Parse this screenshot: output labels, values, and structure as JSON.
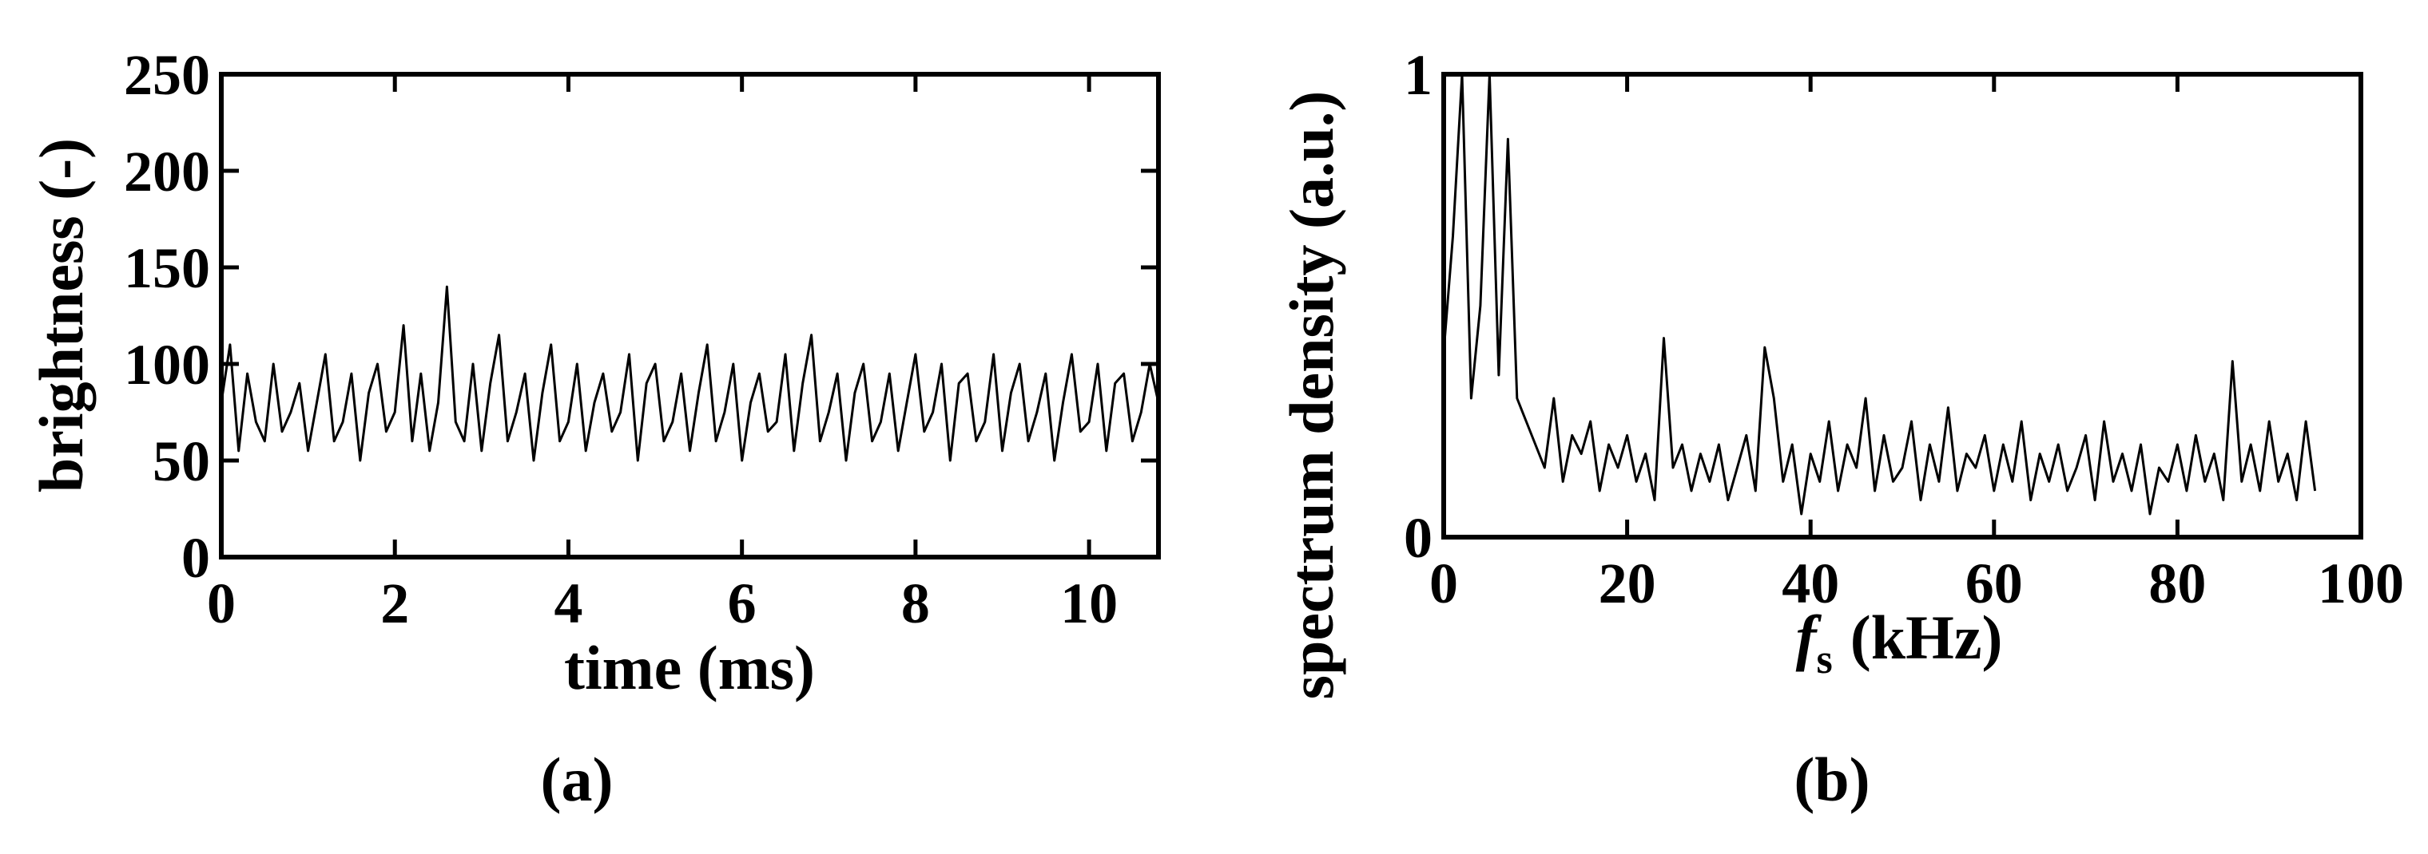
{
  "chart_data": [
    {
      "type": "line",
      "panel_label": "(a)",
      "xlabel": "time (ms)",
      "ylabel": "brightness (-)",
      "color": "#000000",
      "xlim": [
        0,
        10.8
      ],
      "ylim": [
        0,
        250
      ],
      "xticks": [
        0,
        2,
        4,
        6,
        8,
        10
      ],
      "yticks": [
        0,
        50,
        100,
        150,
        200,
        250
      ],
      "x": [
        0,
        0.1,
        0.2,
        0.3,
        0.4,
        0.5,
        0.6,
        0.7,
        0.8,
        0.9,
        1,
        1.1,
        1.2,
        1.3,
        1.4,
        1.5,
        1.6,
        1.7,
        1.8,
        1.9,
        2,
        2.1,
        2.2,
        2.3,
        2.4,
        2.5,
        2.6,
        2.7,
        2.8,
        2.9,
        3,
        3.1,
        3.2,
        3.3,
        3.4,
        3.5,
        3.6,
        3.7,
        3.8,
        3.9,
        4,
        4.1,
        4.2,
        4.3,
        4.4,
        4.5,
        4.6,
        4.7,
        4.8,
        4.9,
        5,
        5.1,
        5.2,
        5.3,
        5.4,
        5.5,
        5.6,
        5.7,
        5.8,
        5.9,
        6,
        6.1,
        6.2,
        6.3,
        6.4,
        6.5,
        6.6,
        6.7,
        6.8,
        6.9,
        7,
        7.1,
        7.2,
        7.3,
        7.4,
        7.5,
        7.6,
        7.7,
        7.8,
        7.9,
        8,
        8.1,
        8.2,
        8.3,
        8.4,
        8.5,
        8.6,
        8.7,
        8.8,
        8.9,
        9,
        9.1,
        9.2,
        9.3,
        9.4,
        9.5,
        9.6,
        9.7,
        9.8,
        9.9,
        10,
        10.1,
        10.2,
        10.3,
        10.4,
        10.5,
        10.6,
        10.7,
        10.8
      ],
      "values": [
        80,
        110,
        55,
        95,
        70,
        60,
        100,
        65,
        75,
        90,
        55,
        80,
        105,
        60,
        70,
        95,
        50,
        85,
        100,
        65,
        75,
        120,
        60,
        95,
        55,
        80,
        140,
        70,
        60,
        100,
        55,
        90,
        115,
        60,
        75,
        95,
        50,
        85,
        110,
        60,
        70,
        100,
        55,
        80,
        95,
        65,
        75,
        105,
        50,
        90,
        100,
        60,
        70,
        95,
        55,
        85,
        110,
        60,
        75,
        100,
        50,
        80,
        95,
        65,
        70,
        105,
        55,
        90,
        115,
        60,
        75,
        95,
        50,
        85,
        100,
        60,
        70,
        95,
        55,
        80,
        105,
        65,
        75,
        100,
        50,
        90,
        95,
        60,
        70,
        105,
        55,
        85,
        100,
        60,
        75,
        95,
        50,
        80,
        105,
        65,
        70,
        100,
        55,
        90,
        95,
        60,
        75,
        100,
        80
      ]
    },
    {
      "type": "line",
      "panel_label": "(b)",
      "xlabel": {
        "symbol": "f",
        "subscript": "s",
        "unit": "(kHz)"
      },
      "ylabel": "spectrum density (a.u.)",
      "color": "#000000",
      "xlim": [
        0,
        100
      ],
      "ylim": [
        0,
        1
      ],
      "xticks": [
        0,
        20,
        40,
        60,
        80,
        100
      ],
      "yticks": [
        0,
        1
      ],
      "x": [
        0,
        1,
        2,
        3,
        4,
        5,
        6,
        7,
        8,
        9,
        10,
        11,
        12,
        13,
        14,
        15,
        16,
        17,
        18,
        19,
        20,
        21,
        22,
        23,
        24,
        25,
        26,
        27,
        28,
        29,
        30,
        31,
        32,
        33,
        34,
        35,
        36,
        37,
        38,
        39,
        40,
        41,
        42,
        43,
        44,
        45,
        46,
        47,
        48,
        49,
        50,
        51,
        52,
        53,
        54,
        55,
        56,
        57,
        58,
        59,
        60,
        61,
        62,
        63,
        64,
        65,
        66,
        67,
        68,
        69,
        70,
        71,
        72,
        73,
        74,
        75,
        76,
        77,
        78,
        79,
        80,
        81,
        82,
        83,
        84,
        85,
        86,
        87,
        88,
        89,
        90,
        91,
        92,
        93,
        94,
        95
      ],
      "values": [
        0.4,
        0.65,
        1,
        0.3,
        0.5,
        1,
        0.35,
        0.86,
        0.3,
        0.25,
        0.2,
        0.15,
        0.3,
        0.12,
        0.22,
        0.18,
        0.25,
        0.1,
        0.2,
        0.15,
        0.22,
        0.12,
        0.18,
        0.08,
        0.43,
        0.15,
        0.2,
        0.1,
        0.18,
        0.12,
        0.2,
        0.08,
        0.15,
        0.22,
        0.1,
        0.41,
        0.3,
        0.12,
        0.2,
        0.05,
        0.18,
        0.12,
        0.25,
        0.1,
        0.2,
        0.15,
        0.3,
        0.1,
        0.22,
        0.12,
        0.15,
        0.25,
        0.08,
        0.2,
        0.12,
        0.28,
        0.1,
        0.18,
        0.15,
        0.22,
        0.1,
        0.2,
        0.12,
        0.25,
        0.08,
        0.18,
        0.12,
        0.2,
        0.1,
        0.15,
        0.22,
        0.08,
        0.25,
        0.12,
        0.18,
        0.1,
        0.2,
        0.05,
        0.15,
        0.12,
        0.2,
        0.1,
        0.22,
        0.12,
        0.18,
        0.08,
        0.38,
        0.12,
        0.2,
        0.1,
        0.25,
        0.12,
        0.18,
        0.08,
        0.25,
        0.1
      ]
    }
  ]
}
